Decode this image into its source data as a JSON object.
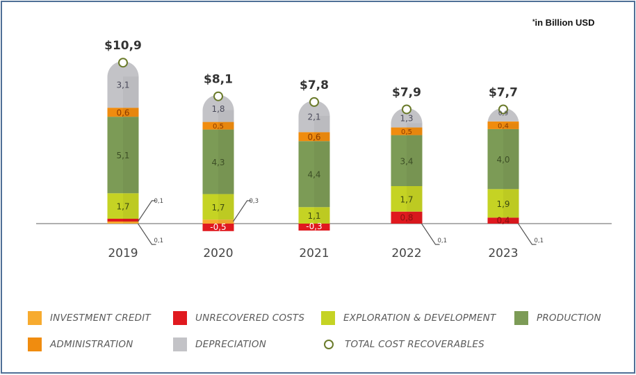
{
  "chart_data": {
    "type": "bar",
    "stacked": true,
    "title": "",
    "unit_note": "in Billion USD",
    "unit_note_marker": "*",
    "xlabel": "",
    "ylabel": "",
    "categories": [
      "2019",
      "2020",
      "2021",
      "2022",
      "2023"
    ],
    "totals": [
      10.9,
      8.1,
      7.8,
      7.9,
      7.7
    ],
    "totals_labels": [
      "$10,9",
      "$8,1",
      "$7,8",
      "$7,9",
      "$7,7"
    ],
    "series": [
      {
        "key": "investment_credit",
        "name": "INVESTMENT CREDIT",
        "color": "#f7ab2f",
        "values": [
          0.1,
          0.3,
          0.0,
          0.0,
          0.0
        ],
        "labels": [
          "0,1",
          "0,3",
          "",
          "",
          ""
        ]
      },
      {
        "key": "unrecovered_costs",
        "name": "UNRECOVERED COSTS",
        "color": "#e0191f",
        "values": [
          0.1,
          -0.5,
          -0.3,
          0.8,
          0.4
        ],
        "labels": [
          "0,1",
          "-0,5",
          "-0,3",
          "0,8",
          "0,4"
        ]
      },
      {
        "key": "exploration_development",
        "name": "EXPLORATION & DEVELOPMENT",
        "color": "#c5d324",
        "values": [
          1.7,
          1.7,
          1.1,
          1.7,
          1.9
        ],
        "labels": [
          "1,7",
          "1,7",
          "1,1",
          "1,7",
          "1,9"
        ]
      },
      {
        "key": "production",
        "name": "PRODUCTION",
        "color": "#7c9b56",
        "values": [
          5.1,
          4.3,
          4.4,
          3.4,
          4.0
        ],
        "labels": [
          "5,1",
          "4,3",
          "4,4",
          "3,4",
          "4,0"
        ]
      },
      {
        "key": "administration",
        "name": "ADMINISTRATION",
        "color": "#f08c0f",
        "values": [
          0.6,
          0.5,
          0.6,
          0.5,
          0.4
        ],
        "labels": [
          "0,6",
          "0,5",
          "0,6",
          "0,5",
          "0,4"
        ]
      },
      {
        "key": "depreciation",
        "name": "DEPRECIATION",
        "color": "#c3c3c7",
        "values": [
          3.1,
          1.8,
          2.1,
          1.3,
          0.9
        ],
        "labels": [
          "3,1",
          "1,8",
          "2,1",
          "1,3",
          "0,9"
        ]
      }
    ],
    "callouts": [
      {
        "category": "2019",
        "series": "unrecovered_costs",
        "label": "0,1",
        "direction": "up"
      },
      {
        "category": "2019",
        "series": "investment_credit",
        "label": "0,1",
        "direction": "down"
      },
      {
        "category": "2020",
        "series": "investment_credit",
        "label": "0,3",
        "direction": "up"
      },
      {
        "category": "2022",
        "series": "other",
        "label": "0,1",
        "direction": "down"
      },
      {
        "category": "2023",
        "series": "other",
        "label": "0,1",
        "direction": "down"
      }
    ],
    "total_marker": {
      "name": "TOTAL COST RECOVERABLES",
      "color": "#6a7a2a"
    },
    "grid": false,
    "legend_position": "bottom"
  },
  "legend": [
    {
      "name": "INVESTMENT CREDIT",
      "color": "#f7ab2f",
      "shape": "square"
    },
    {
      "name": "UNRECOVERED COSTS",
      "color": "#e0191f",
      "shape": "square"
    },
    {
      "name": "EXPLORATION & DEVELOPMENT",
      "color": "#c5d324",
      "shape": "square"
    },
    {
      "name": "PRODUCTION",
      "color": "#7c9b56",
      "shape": "square"
    },
    {
      "name": "ADMINISTRATION",
      "color": "#f08c0f",
      "shape": "square"
    },
    {
      "name": "DEPRECIATION",
      "color": "#c3c3c7",
      "shape": "square"
    },
    {
      "name": "TOTAL COST RECOVERABLES",
      "color": "#6a7a2a",
      "shape": "circle"
    }
  ]
}
